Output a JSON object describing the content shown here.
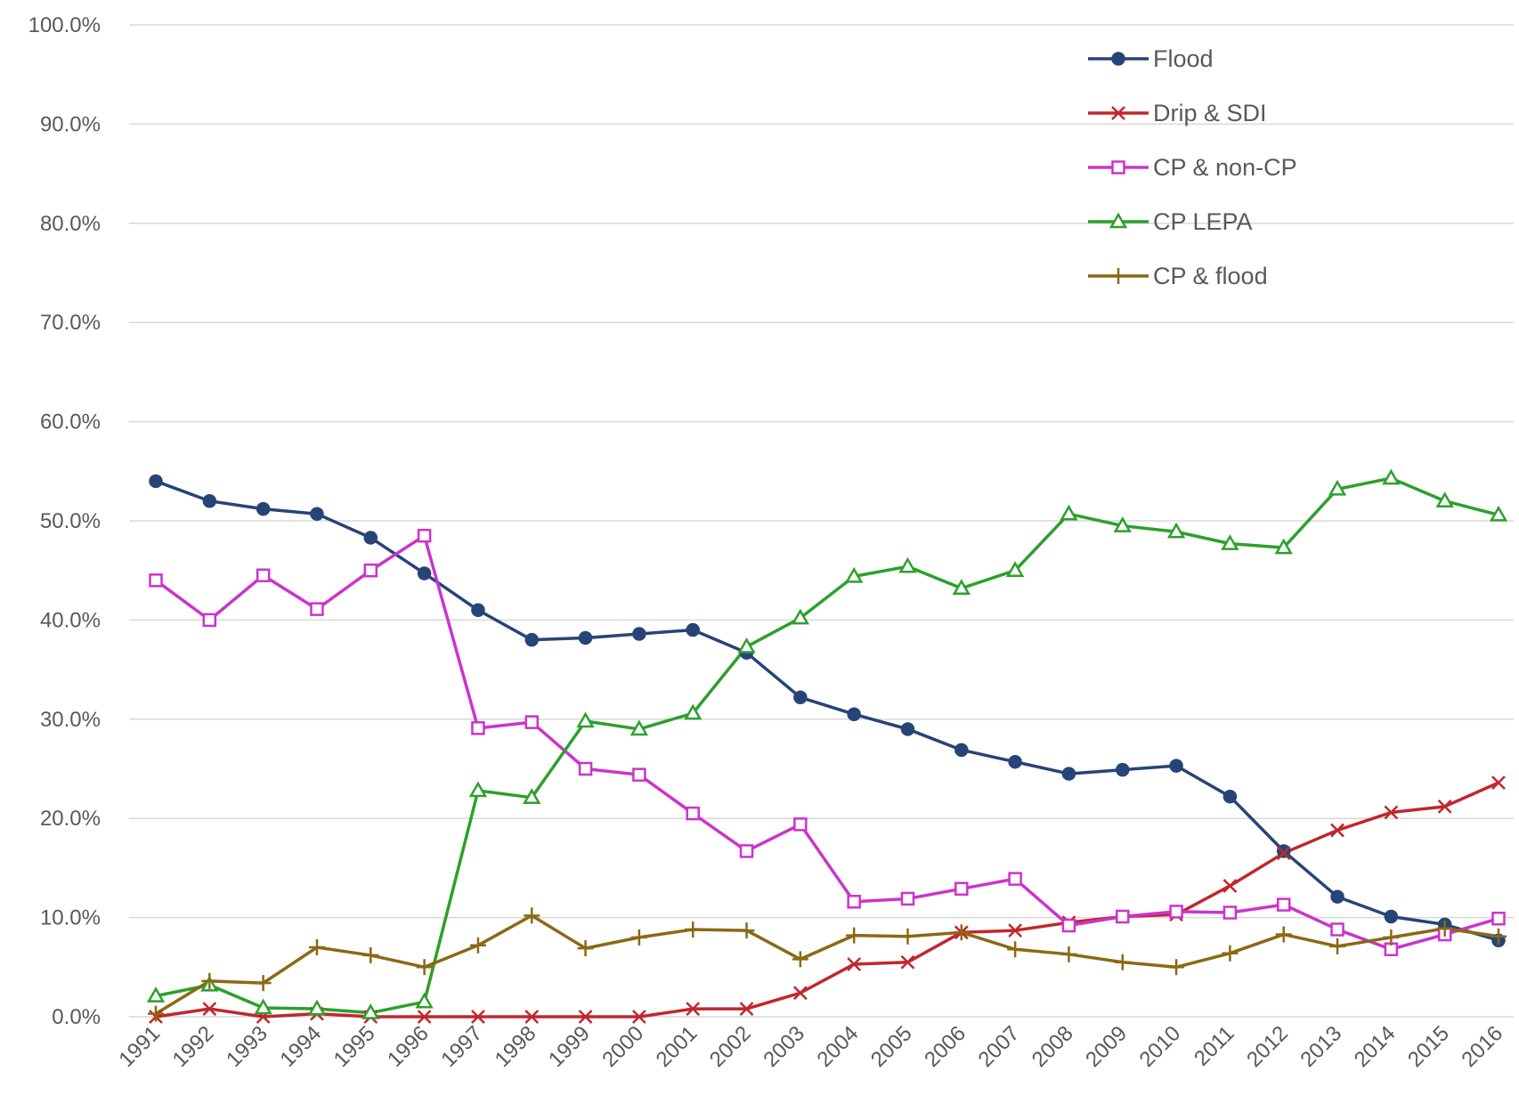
{
  "chart_data": {
    "type": "line",
    "title": "",
    "xlabel": "",
    "ylabel": "",
    "categories": [
      "1991",
      "1992",
      "1993",
      "1994",
      "1995",
      "1996",
      "1997",
      "1998",
      "1999",
      "2000",
      "2001",
      "2002",
      "2003",
      "2004",
      "2005",
      "2006",
      "2007",
      "2008",
      "2009",
      "2010",
      "2011",
      "2012",
      "2013",
      "2014",
      "2015",
      "2016"
    ],
    "ylim": [
      0,
      100
    ],
    "yticks": [
      "0.0%",
      "10.0%",
      "20.0%",
      "30.0%",
      "40.0%",
      "50.0%",
      "60.0%",
      "70.0%",
      "80.0%",
      "90.0%",
      "100.0%"
    ],
    "grid": true,
    "legend_position": "top-right",
    "series": [
      {
        "name": "Flood",
        "color": "#264478",
        "marker": "circle",
        "values": [
          54.0,
          52.0,
          51.2,
          50.7,
          48.3,
          44.7,
          41.0,
          38.0,
          38.2,
          38.6,
          39.0,
          36.7,
          32.2,
          30.5,
          29.0,
          26.9,
          25.7,
          24.5,
          24.9,
          25.3,
          22.2,
          16.7,
          12.1,
          10.1,
          9.3,
          7.7
        ]
      },
      {
        "name": "Drip & SDI",
        "color": "#C0272D",
        "marker": "x",
        "values": [
          0.0,
          0.8,
          0.0,
          0.3,
          0.0,
          0.0,
          0.0,
          0.0,
          0.0,
          0.0,
          0.8,
          0.8,
          2.4,
          5.3,
          5.5,
          8.5,
          8.7,
          9.5,
          10.1,
          10.3,
          13.2,
          16.5,
          18.8,
          20.6,
          21.2,
          23.6
        ]
      },
      {
        "name": "CP & non-CP",
        "color": "#CC33CC",
        "marker": "square",
        "values": [
          44.0,
          40.0,
          44.5,
          41.1,
          45.0,
          48.5,
          29.1,
          29.7,
          25.0,
          24.4,
          20.5,
          16.7,
          19.4,
          11.6,
          11.9,
          12.9,
          13.9,
          9.2,
          10.1,
          10.6,
          10.5,
          11.3,
          8.8,
          6.8,
          8.3,
          9.9
        ]
      },
      {
        "name": "CP LEPA",
        "color": "#2CA02C",
        "marker": "triangle",
        "values": [
          2.1,
          3.2,
          0.9,
          0.8,
          0.4,
          1.5,
          22.8,
          22.1,
          29.8,
          29.0,
          30.6,
          37.3,
          40.2,
          44.4,
          45.4,
          43.2,
          45.0,
          50.7,
          49.5,
          48.9,
          47.7,
          47.3,
          53.2,
          54.3,
          52.0,
          50.6
        ]
      },
      {
        "name": "CP & flood",
        "color": "#8B6914",
        "marker": "plus",
        "values": [
          0.3,
          3.6,
          3.4,
          7.0,
          6.2,
          5.0,
          7.2,
          10.2,
          6.9,
          8.0,
          8.8,
          8.7,
          5.8,
          8.2,
          8.1,
          8.5,
          6.8,
          6.3,
          5.5,
          5.0,
          6.4,
          8.3,
          7.1,
          8.0,
          8.9,
          8.1
        ]
      }
    ]
  }
}
